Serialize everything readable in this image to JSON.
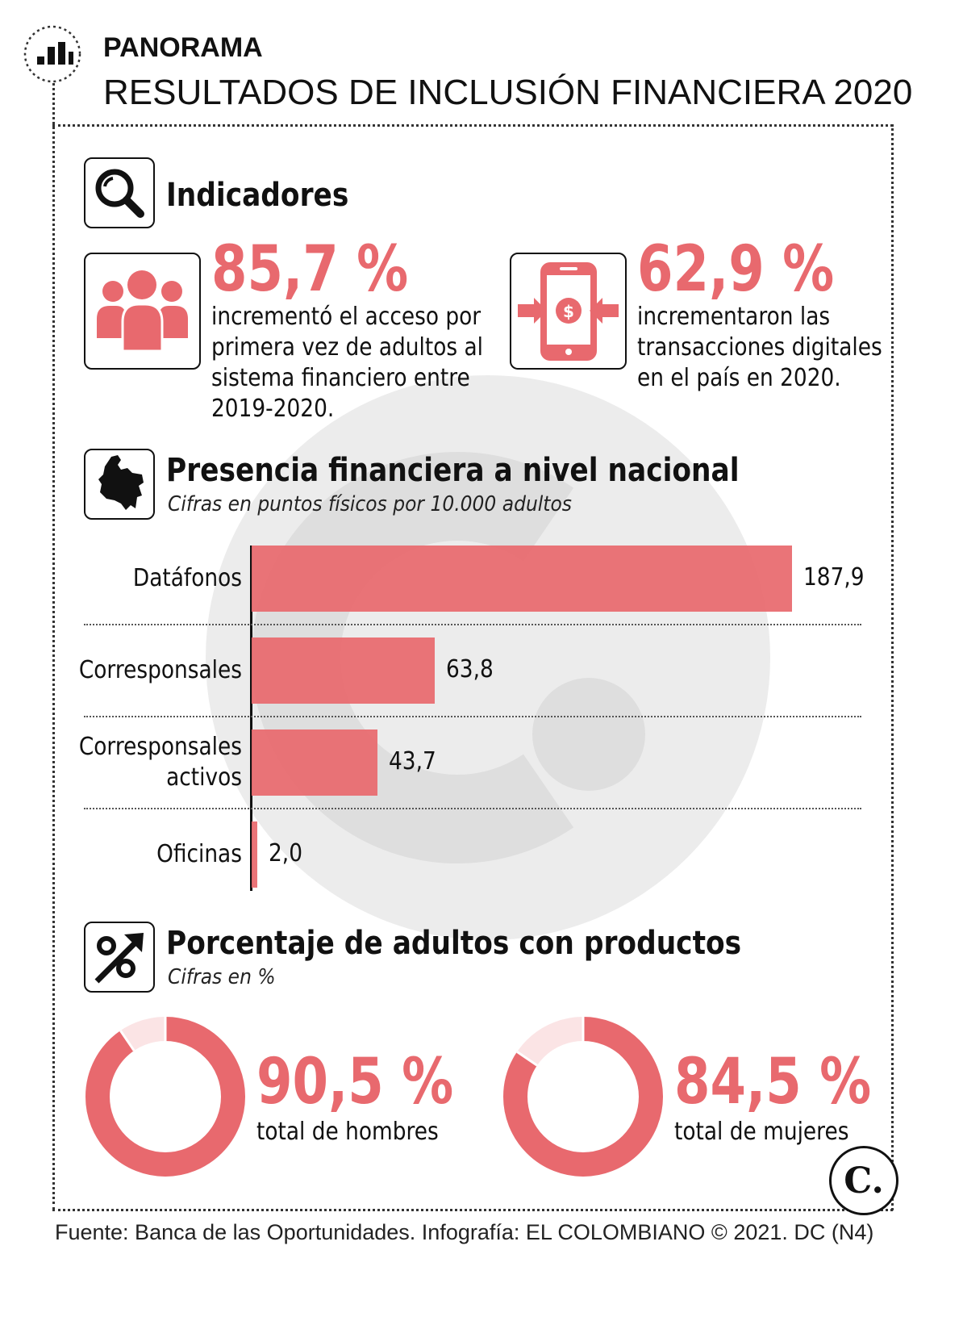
{
  "header": {
    "section_label": "PANORAMA",
    "title": "RESULTADOS DE INCLUSIÓN FINANCIERA 2020"
  },
  "indicators": {
    "heading": "Indicadores",
    "items": [
      {
        "value": "85,7 %",
        "lines": [
          "incrementó el acceso por",
          "primera vez de adultos al",
          "sistema financiero entre",
          "2019-2020."
        ],
        "icon": "people-group-icon"
      },
      {
        "value": "62,9 %",
        "lines": [
          "incrementaron las",
          "transacciones digitales",
          "en el país en 2020."
        ],
        "icon": "mobile-payment-icon"
      }
    ]
  },
  "presence": {
    "heading": "Presencia financiera a nivel nacional",
    "subheading": "Cifras en puntos físicos por 10.000 adultos"
  },
  "products": {
    "heading": "Porcentaje de adultos con productos",
    "subheading": "Cifras en %",
    "items": [
      {
        "value": "90,5 %",
        "label": "total de hombres",
        "percent": 90.5
      },
      {
        "value": "84,5 %",
        "label": "total de mujeres",
        "percent": 84.5
      }
    ]
  },
  "footer": {
    "source": "Fuente: Banca de las Oportunidades. Infografía: EL COLOMBIANO © 2021. DC (N4)",
    "logo_text": "C."
  },
  "colors": {
    "accent": "#e8696e",
    "watermark": "#ececec"
  },
  "chart_data": {
    "type": "bar",
    "orientation": "horizontal",
    "title": "Presencia financiera a nivel nacional",
    "subtitle": "Cifras en puntos físicos por 10.000 adultos",
    "categories": [
      "Datáfonos",
      "Corresponsales",
      "Corresponsales activos",
      "Oficinas"
    ],
    "category_lines": [
      [
        "Datáfonos"
      ],
      [
        "Corresponsales"
      ],
      [
        "Corresponsales",
        "activos"
      ],
      [
        "Oficinas"
      ]
    ],
    "values": [
      187.9,
      63.8,
      43.7,
      2.0
    ],
    "value_labels": [
      "187,9",
      "63,8",
      "43,7",
      "2,0"
    ],
    "xlim": [
      0,
      187.9
    ],
    "grid": false
  }
}
